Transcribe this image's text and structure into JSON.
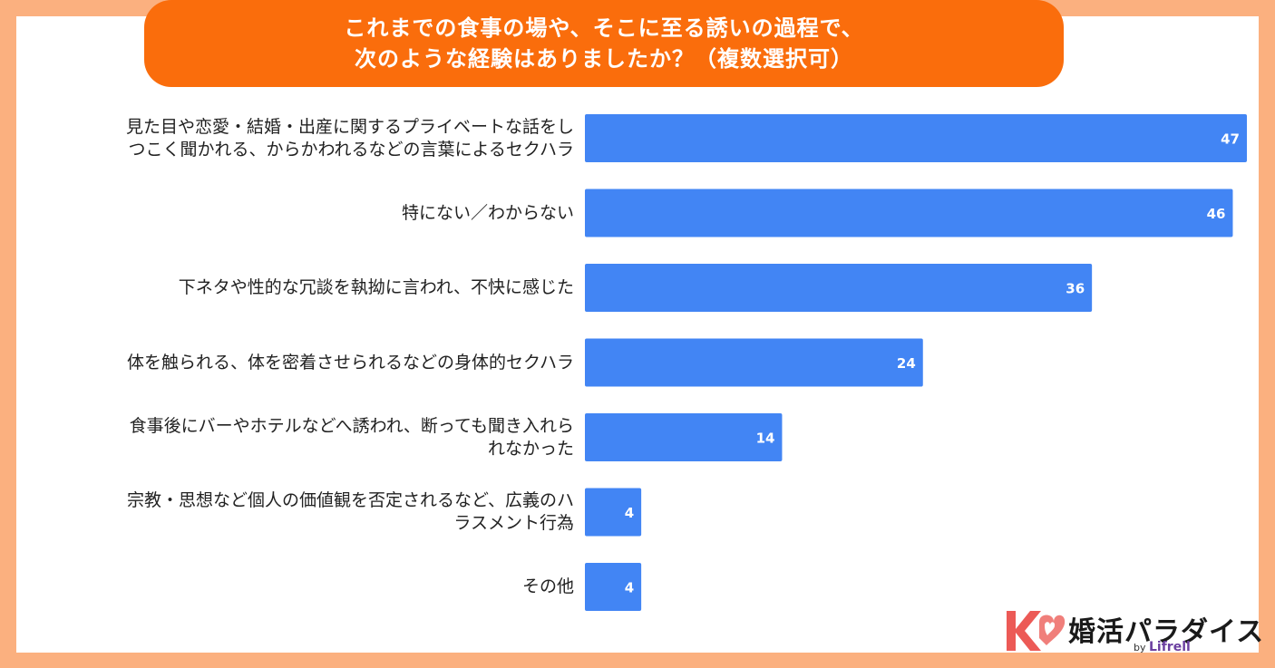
{
  "header": {
    "title_line1": "これまでの食事の場や、そこに至る誘いの過程で、",
    "title_line2": "次のような経験はありましたか？（複数選択可）"
  },
  "colors": {
    "background": "#fbb07f",
    "title_bg": "#fa6d0c",
    "bar": "#4285f4",
    "value_text": "#ffffff"
  },
  "chart_data": {
    "type": "bar",
    "orientation": "horizontal",
    "categories": [
      "見た目や恋愛・結婚・出産に関するプライベートな話をしつこく聞かれる、からかわれるなどの言葉によるセクハラ",
      "特にない／わからない",
      "下ネタや性的な冗談を執拗に言われ、不快に感じた",
      "体を触られる、体を密着させられるなどの身体的セクハラ",
      "食事後にバーやホテルなどへ誘われ、断っても聞き入れられなかった",
      "宗教・思想など個人の価値観を否定されるなど、広義のハラスメント行為",
      "その他"
    ],
    "category_lines": [
      [
        "見た目や恋愛・結婚・出産に関するプライベートな話をし",
        "つこく聞かれる、からかわれるなどの言葉によるセクハラ"
      ],
      [
        "特にない／わからない"
      ],
      [
        "下ネタや性的な冗談を執拗に言われ、不快に感じた"
      ],
      [
        "体を触られる、体を密着させられるなどの身体的セクハラ"
      ],
      [
        "食事後にバーやホテルなどへ誘われ、断っても聞き入れら",
        "れなかった"
      ],
      [
        "宗教・思想など個人の価値観を否定されるなど、広義のハ",
        "ラスメント行為"
      ],
      [
        "その他"
      ]
    ],
    "values": [
      47,
      46,
      36,
      24,
      14,
      4,
      4
    ],
    "xlim": [
      0,
      47
    ],
    "data_labels": true,
    "grid": false,
    "legend": "none"
  },
  "logo": {
    "brand": "婚活パラダイス",
    "by": "by",
    "company": "Lifrell"
  }
}
